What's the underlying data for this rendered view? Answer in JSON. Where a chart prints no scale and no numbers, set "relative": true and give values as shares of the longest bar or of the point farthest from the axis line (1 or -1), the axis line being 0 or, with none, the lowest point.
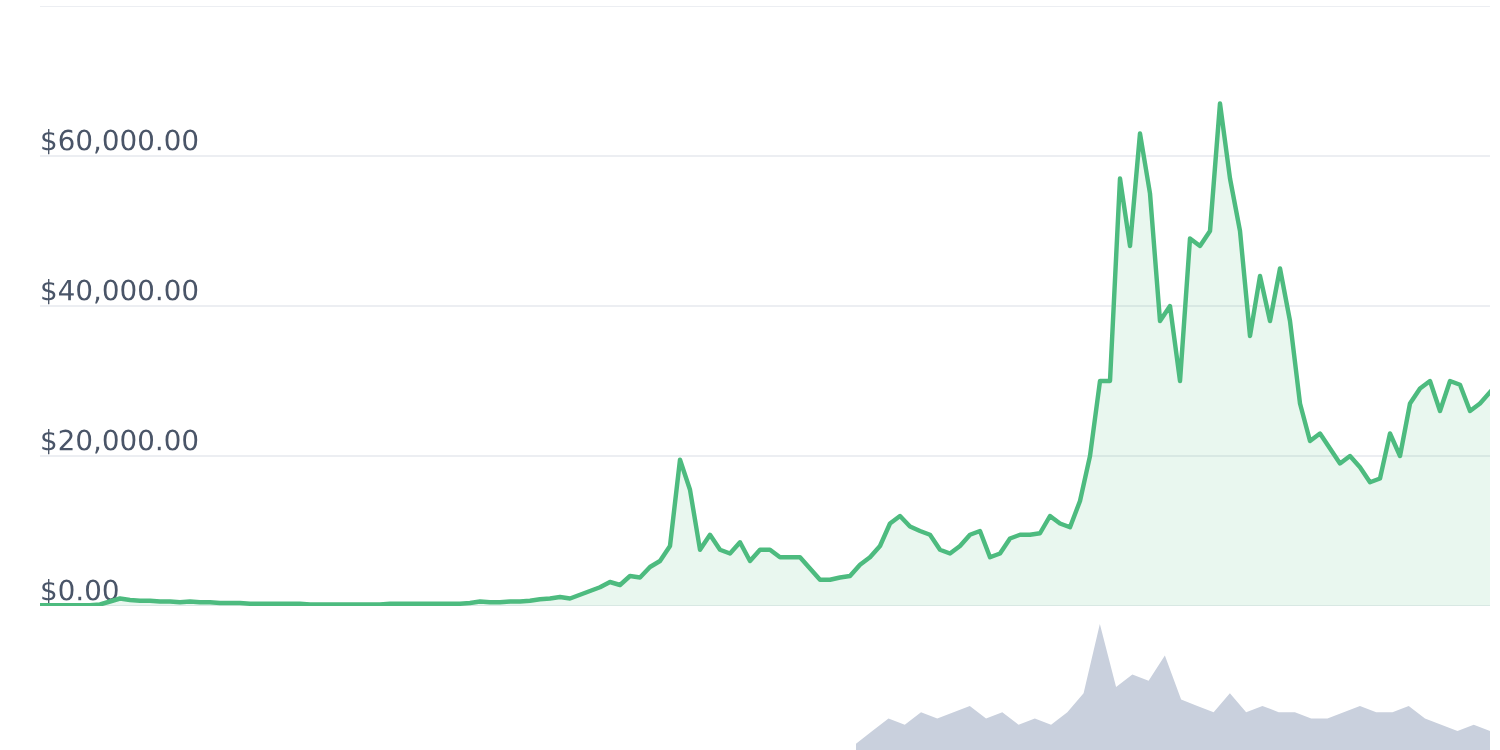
{
  "chart_data": [
    {
      "type": "area",
      "categories": [
        null,
        null,
        null,
        null,
        null,
        null,
        null,
        null,
        null,
        null,
        null,
        null,
        null,
        null,
        null,
        null,
        null,
        null,
        null,
        null,
        null,
        null,
        null,
        null,
        null,
        null,
        null,
        null,
        null,
        null,
        null,
        null,
        null,
        null,
        null,
        null,
        null,
        null,
        null,
        null,
        null,
        null,
        null,
        null,
        null,
        null,
        null,
        null,
        null,
        null,
        null,
        null,
        null,
        null,
        null,
        null,
        null,
        null,
        null,
        null,
        null,
        null,
        null,
        null,
        null,
        null,
        null,
        null,
        null,
        null,
        null,
        null,
        null,
        null,
        null,
        null,
        null,
        null,
        null,
        null,
        null,
        null,
        null,
        null,
        null,
        null,
        null,
        null,
        null,
        null,
        null,
        null,
        null,
        null,
        null,
        null,
        null,
        null,
        null,
        null,
        null,
        null,
        null,
        null,
        null,
        null,
        null,
        null,
        null,
        null,
        null,
        null,
        null,
        null,
        null,
        null,
        null,
        null,
        null,
        null,
        null,
        null,
        null,
        null,
        null,
        null,
        null,
        null,
        null,
        null,
        null,
        null,
        null,
        null,
        null,
        null,
        null,
        null,
        null,
        null,
        null,
        null,
        null,
        null,
        null,
        null
      ],
      "series": [
        {
          "color": "#4dbb7f",
          "values": [
            100,
            100,
            100,
            100,
            100,
            100,
            200,
            600,
            1000,
            800,
            700,
            700,
            600,
            600,
            500,
            600,
            500,
            500,
            400,
            400,
            400,
            300,
            300,
            300,
            300,
            300,
            300,
            200,
            200,
            200,
            200,
            200,
            200,
            200,
            200,
            300,
            300,
            300,
            300,
            300,
            300,
            300,
            300,
            400,
            600,
            500,
            500,
            600,
            600,
            700,
            900,
            1000,
            1200,
            1000,
            1500,
            2000,
            2500,
            3200,
            2800,
            4000,
            3800,
            5200,
            6000,
            8000,
            19500,
            15500,
            7500,
            9500,
            7500,
            7000,
            8500,
            6000,
            7500,
            7500,
            6500,
            6500,
            6500,
            5000,
            3500,
            3500,
            3800,
            4000,
            5500,
            6500,
            8000,
            11000,
            12000,
            10600,
            10000,
            9500,
            7500,
            7000,
            8000,
            9500,
            10000,
            6500,
            7000,
            9000,
            9500,
            9500,
            9700,
            12000,
            11000,
            10500,
            14000,
            20000,
            30000,
            30000,
            57000,
            48000,
            63000,
            55000,
            38000,
            40000,
            30000,
            49000,
            48000,
            50000,
            67000,
            57000,
            50000,
            36000,
            44000,
            38000,
            45000,
            38000,
            27000,
            22000,
            23000,
            21000,
            19000,
            20000,
            18500,
            16500,
            17000,
            23000,
            20000,
            27000,
            29000,
            30000,
            26000,
            30000,
            29500,
            26000,
            27000,
            28500
          ]
        }
      ],
      "ylim": [
        0,
        80000
      ],
      "yticks": [
        {
          "value": 0,
          "label": "$0.00"
        },
        {
          "value": 20000,
          "label": "$20,000.00"
        },
        {
          "value": 40000,
          "label": "$40,000.00"
        },
        {
          "value": 60000,
          "label": "$60,000.00"
        },
        {
          "value": 80000,
          "label": null
        }
      ],
      "grid": "y",
      "tick_labels": "y"
    },
    {
      "type": "area",
      "relative": true,
      "tick_labels": false,
      "categories": [
        null,
        null,
        null,
        null,
        null,
        null,
        null,
        null,
        null,
        null,
        null,
        null,
        null,
        null,
        null,
        null,
        null,
        null,
        null,
        null,
        null,
        null,
        null,
        null,
        null,
        null,
        null,
        null,
        null,
        null,
        null,
        null,
        null,
        null,
        null,
        null,
        null,
        null,
        null,
        null
      ],
      "series": [
        {
          "color": "#c9d0dd",
          "values": [
            0.05,
            0.15,
            0.25,
            0.2,
            0.3,
            0.25,
            0.3,
            0.35,
            0.25,
            0.3,
            0.2,
            0.25,
            0.2,
            0.3,
            0.45,
            1.0,
            0.5,
            0.6,
            0.55,
            0.75,
            0.4,
            0.35,
            0.3,
            0.45,
            0.3,
            0.35,
            0.3,
            0.3,
            0.25,
            0.25,
            0.3,
            0.35,
            0.3,
            0.3,
            0.35,
            0.25,
            0.2,
            0.15,
            0.2,
            0.15
          ]
        }
      ]
    }
  ]
}
